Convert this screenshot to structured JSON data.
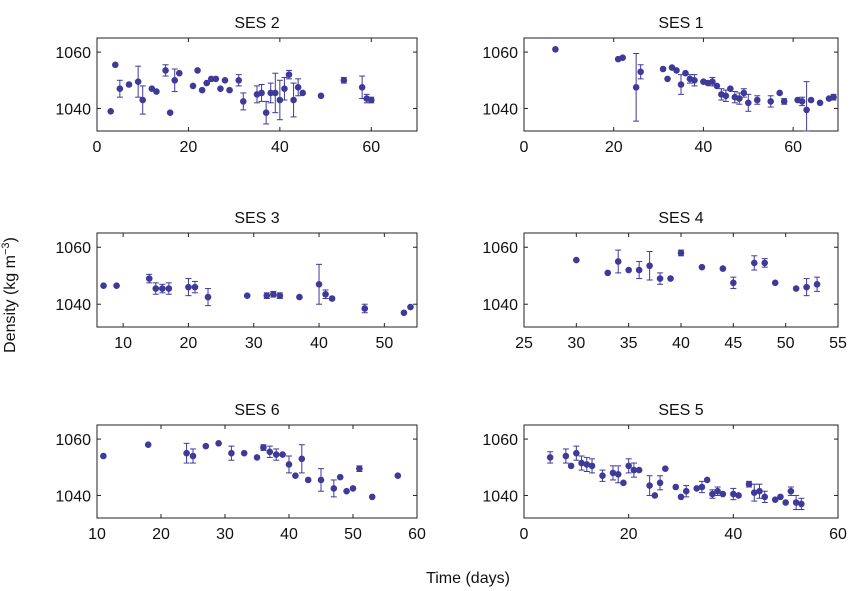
{
  "figure": {
    "xlabel": "Time (days)",
    "ylabel": "Density (kg m",
    "ylabel_sup": "−3",
    "ylabel_end": ")",
    "marker_color": "#3f3a99"
  },
  "chart_data": [
    {
      "type": "scatter",
      "title": "SES 2",
      "xlim": [
        0,
        70
      ],
      "ylim": [
        1032,
        1065
      ],
      "xticks": [
        0,
        20,
        40,
        60
      ],
      "yticks": [
        1040,
        1060
      ],
      "points": [
        {
          "x": 3,
          "y": 1039
        },
        {
          "x": 4,
          "y": 1055.5
        },
        {
          "x": 5,
          "y": 1047,
          "e": 3
        },
        {
          "x": 7,
          "y": 1048.5
        },
        {
          "x": 9,
          "y": 1049.5,
          "e": 5.5
        },
        {
          "x": 10,
          "y": 1043,
          "e": 5
        },
        {
          "x": 12,
          "y": 1047
        },
        {
          "x": 13,
          "y": 1046
        },
        {
          "x": 15,
          "y": 1053.5,
          "e": 2
        },
        {
          "x": 16,
          "y": 1038.5
        },
        {
          "x": 17,
          "y": 1050,
          "e": 4
        },
        {
          "x": 18,
          "y": 1052.5
        },
        {
          "x": 21,
          "y": 1048
        },
        {
          "x": 22,
          "y": 1053.5
        },
        {
          "x": 23,
          "y": 1046.5
        },
        {
          "x": 24,
          "y": 1049
        },
        {
          "x": 25,
          "y": 1050.5
        },
        {
          "x": 26,
          "y": 1050.5
        },
        {
          "x": 27,
          "y": 1047
        },
        {
          "x": 28,
          "y": 1050
        },
        {
          "x": 29,
          "y": 1046.5
        },
        {
          "x": 31,
          "y": 1050,
          "e": 2
        },
        {
          "x": 32,
          "y": 1042.5,
          "e": 3
        },
        {
          "x": 35,
          "y": 1045,
          "e": 3
        },
        {
          "x": 36,
          "y": 1045.5,
          "e": 3
        },
        {
          "x": 37,
          "y": 1038.5,
          "e": 4
        },
        {
          "x": 38,
          "y": 1045.5,
          "e": 3.5
        },
        {
          "x": 39,
          "y": 1045.5,
          "e": 7
        },
        {
          "x": 40,
          "y": 1043,
          "e": 7
        },
        {
          "x": 41,
          "y": 1047,
          "e": 4
        },
        {
          "x": 42,
          "y": 1052,
          "e": 1.5
        },
        {
          "x": 43,
          "y": 1043,
          "e": 6
        },
        {
          "x": 44,
          "y": 1047.5,
          "e": 3
        },
        {
          "x": 45,
          "y": 1045.5
        },
        {
          "x": 49,
          "y": 1044.5
        },
        {
          "x": 54,
          "y": 1050,
          "e": 1
        },
        {
          "x": 58,
          "y": 1047.5,
          "e": 4
        },
        {
          "x": 59,
          "y": 1043.5,
          "e": 1.5
        },
        {
          "x": 60,
          "y": 1043,
          "e": 1
        }
      ]
    },
    {
      "type": "scatter",
      "title": "SES 1",
      "xlim": [
        0,
        70
      ],
      "ylim": [
        1032,
        1065
      ],
      "xticks": [
        0,
        20,
        40,
        60
      ],
      "yticks": [
        1040,
        1060
      ],
      "points": [
        {
          "x": 7,
          "y": 1061
        },
        {
          "x": 21,
          "y": 1057.5
        },
        {
          "x": 22,
          "y": 1058
        },
        {
          "x": 25,
          "y": 1047.5,
          "e": 12
        },
        {
          "x": 26,
          "y": 1053,
          "e": 2.5
        },
        {
          "x": 31,
          "y": 1054
        },
        {
          "x": 32,
          "y": 1050.5
        },
        {
          "x": 33,
          "y": 1054.5
        },
        {
          "x": 34,
          "y": 1053.5
        },
        {
          "x": 35,
          "y": 1048.5,
          "e": 3.5
        },
        {
          "x": 36,
          "y": 1052.5
        },
        {
          "x": 37,
          "y": 1050.5,
          "e": 1.5
        },
        {
          "x": 38,
          "y": 1050,
          "e": 2
        },
        {
          "x": 40,
          "y": 1049.5
        },
        {
          "x": 41,
          "y": 1049
        },
        {
          "x": 42,
          "y": 1049.5,
          "e": 1.5
        },
        {
          "x": 43,
          "y": 1048
        },
        {
          "x": 44,
          "y": 1045,
          "e": 2
        },
        {
          "x": 45,
          "y": 1044.5,
          "e": 2
        },
        {
          "x": 46,
          "y": 1047
        },
        {
          "x": 47,
          "y": 1044,
          "e": 2
        },
        {
          "x": 48,
          "y": 1043.5,
          "e": 2
        },
        {
          "x": 49,
          "y": 1045.5,
          "e": 1.5
        },
        {
          "x": 50,
          "y": 1042,
          "e": 3
        },
        {
          "x": 52,
          "y": 1043,
          "e": 1.5
        },
        {
          "x": 55,
          "y": 1042.5,
          "e": 2
        },
        {
          "x": 57,
          "y": 1045.5
        },
        {
          "x": 58,
          "y": 1042.5,
          "e": 1
        },
        {
          "x": 61,
          "y": 1043
        },
        {
          "x": 62,
          "y": 1042.5,
          "e": 1.5
        },
        {
          "x": 63,
          "y": 1039.5,
          "e": 10
        },
        {
          "x": 64,
          "y": 1043
        },
        {
          "x": 66,
          "y": 1042
        },
        {
          "x": 68,
          "y": 1043.5
        },
        {
          "x": 69,
          "y": 1044,
          "e": 1
        }
      ]
    },
    {
      "type": "scatter",
      "title": "SES 3",
      "xlim": [
        6,
        55
      ],
      "ylim": [
        1032,
        1065
      ],
      "xticks": [
        10,
        20,
        30,
        40,
        50
      ],
      "yticks": [
        1040,
        1060
      ],
      "points": [
        {
          "x": 7,
          "y": 1046.5
        },
        {
          "x": 9,
          "y": 1046.5
        },
        {
          "x": 14,
          "y": 1049,
          "e": 1.5
        },
        {
          "x": 15,
          "y": 1045.5,
          "e": 2
        },
        {
          "x": 16,
          "y": 1045.5,
          "e": 1.5
        },
        {
          "x": 17,
          "y": 1045.5,
          "e": 2
        },
        {
          "x": 20,
          "y": 1046,
          "e": 3
        },
        {
          "x": 21,
          "y": 1046,
          "e": 2
        },
        {
          "x": 23,
          "y": 1042.5,
          "e": 3
        },
        {
          "x": 29,
          "y": 1043
        },
        {
          "x": 32,
          "y": 1043,
          "e": 1
        },
        {
          "x": 33,
          "y": 1043.5,
          "e": 1
        },
        {
          "x": 34,
          "y": 1043,
          "e": 1
        },
        {
          "x": 37,
          "y": 1042.5
        },
        {
          "x": 40,
          "y": 1047,
          "e": 7
        },
        {
          "x": 41,
          "y": 1043.5,
          "e": 1.5
        },
        {
          "x": 42,
          "y": 1042
        },
        {
          "x": 47,
          "y": 1038.5,
          "e": 1.5
        },
        {
          "x": 53,
          "y": 1037
        },
        {
          "x": 54,
          "y": 1039
        }
      ]
    },
    {
      "type": "scatter",
      "title": "SES 4",
      "xlim": [
        25,
        55
      ],
      "ylim": [
        1032,
        1065
      ],
      "xticks": [
        25,
        30,
        35,
        40,
        45,
        50,
        55
      ],
      "yticks": [
        1040,
        1060
      ],
      "points": [
        {
          "x": 30,
          "y": 1055.5
        },
        {
          "x": 33,
          "y": 1051
        },
        {
          "x": 34,
          "y": 1055,
          "e": 4
        },
        {
          "x": 35,
          "y": 1052
        },
        {
          "x": 36,
          "y": 1052,
          "e": 3
        },
        {
          "x": 37,
          "y": 1053.5,
          "e": 5
        },
        {
          "x": 38,
          "y": 1049,
          "e": 2
        },
        {
          "x": 39,
          "y": 1049
        },
        {
          "x": 40,
          "y": 1058,
          "e": 1
        },
        {
          "x": 42,
          "y": 1053
        },
        {
          "x": 44,
          "y": 1052.5
        },
        {
          "x": 45,
          "y": 1047.5,
          "e": 2
        },
        {
          "x": 47,
          "y": 1054.5,
          "e": 2.5
        },
        {
          "x": 48,
          "y": 1054.5,
          "e": 1.5
        },
        {
          "x": 49,
          "y": 1047.5
        },
        {
          "x": 51,
          "y": 1045.5
        },
        {
          "x": 52,
          "y": 1046,
          "e": 3
        },
        {
          "x": 53,
          "y": 1047,
          "e": 2.5
        }
      ]
    },
    {
      "type": "scatter",
      "title": "SES 6",
      "xlim": [
        10,
        60
      ],
      "ylim": [
        1032,
        1065
      ],
      "xticks": [
        10,
        20,
        30,
        40,
        50,
        60
      ],
      "yticks": [
        1040,
        1060
      ],
      "points": [
        {
          "x": 11,
          "y": 1054
        },
        {
          "x": 18,
          "y": 1058
        },
        {
          "x": 24,
          "y": 1055,
          "e": 3.5
        },
        {
          "x": 25,
          "y": 1054,
          "e": 2.5
        },
        {
          "x": 27,
          "y": 1057.5
        },
        {
          "x": 29,
          "y": 1058.5
        },
        {
          "x": 31,
          "y": 1055,
          "e": 2.5
        },
        {
          "x": 33,
          "y": 1055
        },
        {
          "x": 35,
          "y": 1053.5
        },
        {
          "x": 36,
          "y": 1057,
          "e": 1
        },
        {
          "x": 37,
          "y": 1055.5,
          "e": 2
        },
        {
          "x": 38,
          "y": 1054.5,
          "e": 2
        },
        {
          "x": 39,
          "y": 1054.5
        },
        {
          "x": 40,
          "y": 1051,
          "e": 3
        },
        {
          "x": 41,
          "y": 1047
        },
        {
          "x": 42,
          "y": 1053,
          "e": 5
        },
        {
          "x": 43,
          "y": 1045.5
        },
        {
          "x": 45,
          "y": 1045.5,
          "e": 4
        },
        {
          "x": 47,
          "y": 1042.5,
          "e": 3
        },
        {
          "x": 48,
          "y": 1046.5
        },
        {
          "x": 49,
          "y": 1041.5
        },
        {
          "x": 50,
          "y": 1042.5
        },
        {
          "x": 51,
          "y": 1049.5,
          "e": 1
        },
        {
          "x": 53,
          "y": 1039.5
        },
        {
          "x": 57,
          "y": 1047
        }
      ]
    },
    {
      "type": "scatter",
      "title": "SES 5",
      "xlim": [
        0,
        60
      ],
      "ylim": [
        1032,
        1065
      ],
      "xticks": [
        0,
        20,
        40,
        60
      ],
      "yticks": [
        1040,
        1060
      ],
      "points": [
        {
          "x": 5,
          "y": 1053.5,
          "e": 2
        },
        {
          "x": 8,
          "y": 1054,
          "e": 2.5
        },
        {
          "x": 9,
          "y": 1050.5
        },
        {
          "x": 10,
          "y": 1055,
          "e": 2.5
        },
        {
          "x": 11,
          "y": 1051.5,
          "e": 2.5
        },
        {
          "x": 12,
          "y": 1051,
          "e": 2.5
        },
        {
          "x": 13,
          "y": 1050.5,
          "e": 2.5
        },
        {
          "x": 15,
          "y": 1047,
          "e": 2
        },
        {
          "x": 17,
          "y": 1048,
          "e": 2.5
        },
        {
          "x": 18,
          "y": 1047.5,
          "e": 3
        },
        {
          "x": 19,
          "y": 1044.5
        },
        {
          "x": 20,
          "y": 1050.5,
          "e": 2.5
        },
        {
          "x": 21,
          "y": 1049,
          "e": 2.5
        },
        {
          "x": 22,
          "y": 1049
        },
        {
          "x": 24,
          "y": 1043.5,
          "e": 3.5
        },
        {
          "x": 25,
          "y": 1040
        },
        {
          "x": 26,
          "y": 1044.5,
          "e": 2.5
        },
        {
          "x": 27,
          "y": 1049.5
        },
        {
          "x": 29,
          "y": 1043
        },
        {
          "x": 30,
          "y": 1039.5
        },
        {
          "x": 31,
          "y": 1041.5,
          "e": 2
        },
        {
          "x": 33,
          "y": 1042.5
        },
        {
          "x": 34,
          "y": 1043,
          "e": 2
        },
        {
          "x": 35,
          "y": 1045.5
        },
        {
          "x": 36,
          "y": 1040.5,
          "e": 1.5
        },
        {
          "x": 37,
          "y": 1041.5,
          "e": 1.5
        },
        {
          "x": 38,
          "y": 1040.5
        },
        {
          "x": 40,
          "y": 1040.5,
          "e": 2
        },
        {
          "x": 41,
          "y": 1040
        },
        {
          "x": 43,
          "y": 1044,
          "e": 1
        },
        {
          "x": 44,
          "y": 1041,
          "e": 3
        },
        {
          "x": 45,
          "y": 1041.5,
          "e": 2.5
        },
        {
          "x": 46,
          "y": 1039.5,
          "e": 2
        },
        {
          "x": 48,
          "y": 1038.5
        },
        {
          "x": 49,
          "y": 1039.5
        },
        {
          "x": 50,
          "y": 1037.5
        },
        {
          "x": 51,
          "y": 1041.5,
          "e": 1.5
        },
        {
          "x": 52,
          "y": 1037.5,
          "e": 2.5
        },
        {
          "x": 53,
          "y": 1037,
          "e": 2
        }
      ]
    }
  ]
}
